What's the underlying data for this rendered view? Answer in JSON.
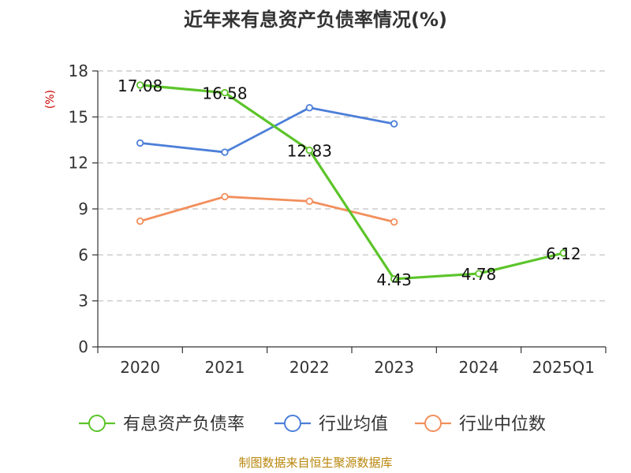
{
  "chart_data": {
    "type": "line",
    "title": "近年来有息资产负债率情况(%)",
    "ylabel": "(%)",
    "xlabel": "",
    "categories": [
      "2020",
      "2021",
      "2022",
      "2023",
      "2024",
      "2025Q1"
    ],
    "ylim": [
      0,
      18
    ],
    "yticks": [
      0,
      3,
      6,
      9,
      12,
      15,
      18
    ],
    "grid": true,
    "legend_position": "bottom",
    "series": [
      {
        "name": "有息资产负债率",
        "color": "#5cc42a",
        "values": [
          17.08,
          16.58,
          12.83,
          4.43,
          4.78,
          6.12
        ],
        "labels": [
          "17.08",
          "16.58",
          "12.83",
          "4.43",
          "4.78",
          "6.12"
        ]
      },
      {
        "name": "行业均值",
        "color": "#4c7fd8",
        "values": [
          13.3,
          12.7,
          15.6,
          14.55,
          null,
          null
        ]
      },
      {
        "name": "行业中位数",
        "color": "#f28f5c",
        "values": [
          8.2,
          9.8,
          9.5,
          8.15,
          null,
          null
        ]
      }
    ],
    "source": "制图数据来自恒生聚源数据库"
  }
}
